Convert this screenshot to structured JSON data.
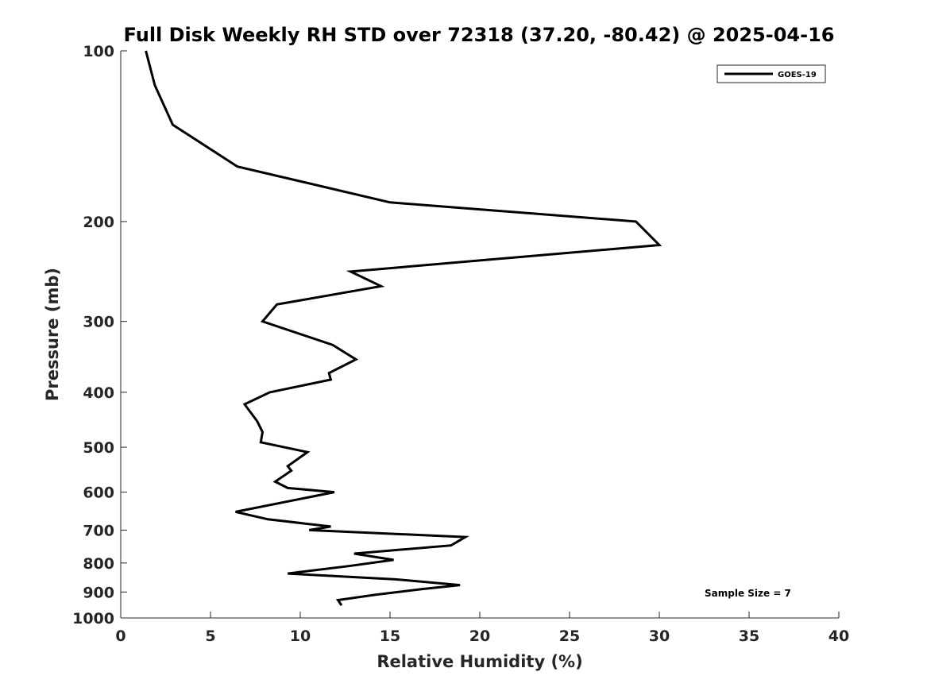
{
  "chart_data": {
    "type": "line",
    "title": "Full Disk Weekly RH STD over 72318 (37.20, -80.42) @ 2025-04-16",
    "xlabel": "Relative Humidity (%)",
    "ylabel": "Pressure (mb)",
    "xlim": [
      0,
      40
    ],
    "ylim": [
      1000,
      100
    ],
    "yscale": "log",
    "y_reversed": true,
    "grid": false,
    "legend_position": "top-right",
    "x_ticks": [
      "0",
      "5",
      "10",
      "15",
      "20",
      "25",
      "30",
      "35",
      "40"
    ],
    "y_ticks": [
      "100",
      "200",
      "300",
      "400",
      "500",
      "600",
      "700",
      "800",
      "900",
      "1000"
    ],
    "annotation": "Sample Size = 7",
    "series": [
      {
        "name": "GOES-19",
        "color": "#000000",
        "x": [
          1.4,
          1.9,
          2.9,
          6.5,
          15.0,
          28.7,
          30.0,
          12.8,
          14.5,
          8.7,
          7.9,
          11.8,
          13.1,
          11.6,
          11.7,
          8.3,
          6.9,
          7.6,
          7.9,
          7.8,
          10.4,
          9.3,
          9.5,
          8.6,
          9.3,
          11.9,
          6.4,
          8.2,
          11.7,
          10.5,
          19.2,
          18.4,
          13.0,
          15.2,
          12.7,
          9.3,
          15.3,
          18.9,
          16.7,
          14.2,
          12.1,
          12.3
        ],
        "y": [
          100,
          115,
          135,
          160,
          185,
          200,
          220,
          245,
          260,
          280,
          300,
          330,
          350,
          370,
          380,
          400,
          420,
          450,
          470,
          490,
          510,
          540,
          550,
          575,
          590,
          600,
          650,
          670,
          690,
          700,
          720,
          745,
          770,
          790,
          810,
          835,
          855,
          875,
          890,
          910,
          930,
          950
        ]
      }
    ]
  }
}
